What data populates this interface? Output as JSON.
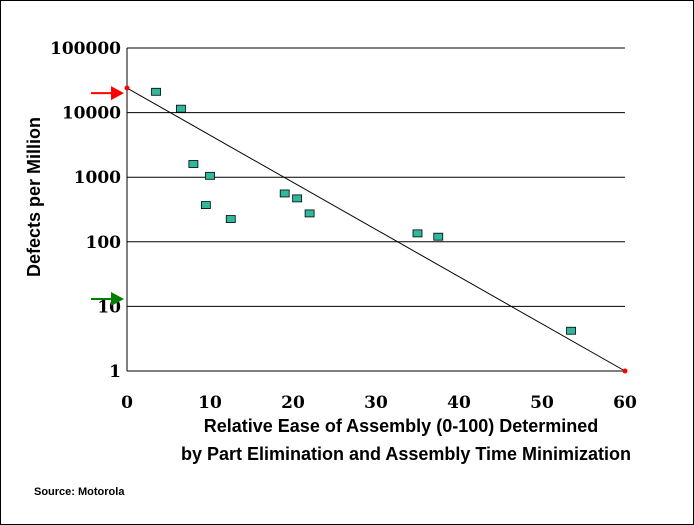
{
  "chart_data": {
    "type": "scatter",
    "xlabel_line1": "Relative Ease of Assembly (0-100) Determined",
    "xlabel_line2": "by Part Elimination and Assembly Time Minimization",
    "ylabel": "Defects per Million",
    "xlim": [
      0,
      60
    ],
    "ylim": [
      1,
      100000
    ],
    "yscale": "log",
    "grid": "horizontal",
    "x_ticks": [
      "0",
      "10",
      "20",
      "30",
      "40",
      "50",
      "60"
    ],
    "y_ticks": [
      "100000",
      "10000",
      "1000",
      "100",
      "10",
      "1"
    ],
    "points": [
      {
        "x": 3.5,
        "y": 21000
      },
      {
        "x": 6.5,
        "y": 11500
      },
      {
        "x": 8,
        "y": 1600
      },
      {
        "x": 10,
        "y": 1050
      },
      {
        "x": 9.5,
        "y": 370
      },
      {
        "x": 12.5,
        "y": 225
      },
      {
        "x": 19,
        "y": 560
      },
      {
        "x": 20.5,
        "y": 470
      },
      {
        "x": 22,
        "y": 275
      },
      {
        "x": 35,
        "y": 135
      },
      {
        "x": 37.5,
        "y": 120
      },
      {
        "x": 53.5,
        "y": 4.2
      }
    ],
    "trend_line": {
      "x": [
        0,
        60
      ],
      "y": [
        24000,
        1
      ]
    },
    "endpoint_markers": [
      {
        "x": 0,
        "y": 24000,
        "color": "#ff0000"
      },
      {
        "x": 60,
        "y": 1,
        "color": "#ff0000"
      }
    ],
    "arrows": [
      {
        "y": 20000,
        "color": "#ff0000"
      },
      {
        "y": 13,
        "color": "#008000"
      }
    ],
    "marker_color": "#2fb89c"
  },
  "source": "Source: Motorola"
}
